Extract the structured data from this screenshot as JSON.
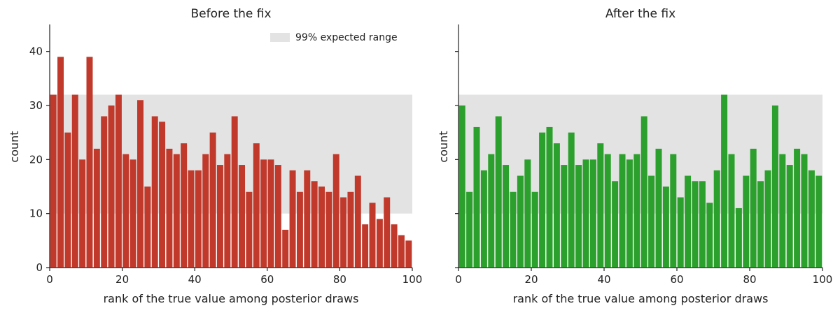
{
  "chart_data": [
    {
      "type": "bar",
      "title": "Before the fix",
      "xlabel": "rank of the true value among posterior draws",
      "ylabel": "count",
      "xlim": [
        0,
        100
      ],
      "ylim": [
        0,
        45
      ],
      "xticks": [
        0,
        20,
        40,
        60,
        80,
        100
      ],
      "yticks": [
        0,
        10,
        20,
        30,
        40
      ],
      "bin_width": 2,
      "expected_range": {
        "label": "99% expected range",
        "low": 10,
        "high": 32
      },
      "legend": {
        "position": "upper-right"
      },
      "color": "#c0392b",
      "x": [
        0,
        2,
        4,
        6,
        8,
        10,
        12,
        14,
        16,
        18,
        20,
        22,
        24,
        26,
        28,
        30,
        32,
        34,
        36,
        38,
        40,
        42,
        44,
        46,
        48,
        50,
        52,
        54,
        56,
        58,
        60,
        62,
        64,
        66,
        68,
        70,
        72,
        74,
        76,
        78,
        80,
        82,
        84,
        86,
        88,
        90,
        92,
        94,
        96,
        98
      ],
      "values": [
        32,
        39,
        25,
        32,
        20,
        39,
        22,
        28,
        30,
        32,
        21,
        20,
        31,
        15,
        28,
        27,
        22,
        21,
        23,
        18,
        18,
        21,
        25,
        19,
        21,
        28,
        19,
        14,
        23,
        20,
        20,
        19,
        7,
        18,
        14,
        18,
        16,
        15,
        14,
        21,
        13,
        14,
        17,
        8,
        12,
        9,
        13,
        8,
        6,
        5
      ]
    },
    {
      "type": "bar",
      "title": "After the fix",
      "xlabel": "rank of the true value among posterior draws",
      "ylabel": "count",
      "xlim": [
        0,
        100
      ],
      "ylim": [
        0,
        45
      ],
      "xticks": [
        0,
        20,
        40,
        60,
        80,
        100
      ],
      "yticks": [
        0,
        10,
        20,
        30,
        40
      ],
      "show_ytick_labels": false,
      "bin_width": 2,
      "expected_range": {
        "low": 10,
        "high": 32
      },
      "color": "#2ca02c",
      "x": [
        0,
        2,
        4,
        6,
        8,
        10,
        12,
        14,
        16,
        18,
        20,
        22,
        24,
        26,
        28,
        30,
        32,
        34,
        36,
        38,
        40,
        42,
        44,
        46,
        48,
        50,
        52,
        54,
        56,
        58,
        60,
        62,
        64,
        66,
        68,
        70,
        72,
        74,
        76,
        78,
        80,
        82,
        84,
        86,
        88,
        90,
        92,
        94,
        96,
        98
      ],
      "values": [
        30,
        14,
        26,
        18,
        21,
        28,
        19,
        14,
        17,
        20,
        14,
        25,
        26,
        23,
        19,
        25,
        19,
        20,
        20,
        23,
        21,
        16,
        21,
        20,
        21,
        28,
        17,
        22,
        15,
        21,
        13,
        17,
        16,
        16,
        12,
        18,
        32,
        21,
        11,
        17,
        22,
        16,
        18,
        30,
        21,
        19,
        22,
        21,
        18,
        17
      ]
    }
  ]
}
